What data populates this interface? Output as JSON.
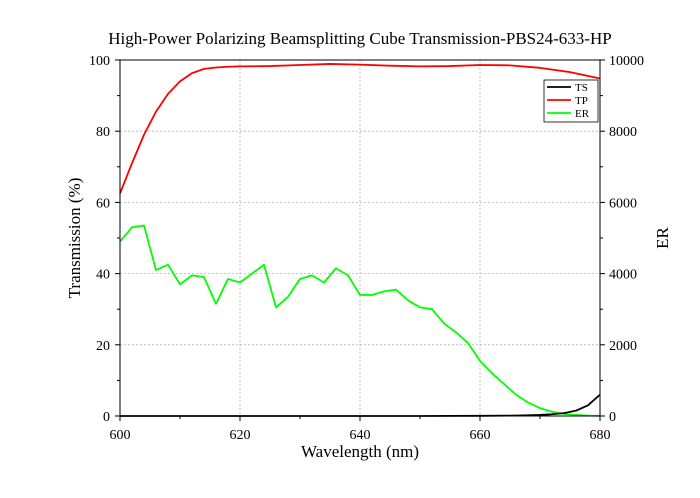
{
  "chart_data": {
    "type": "line",
    "title": "High-Power Polarizing Beamsplitting Cube Transmission-PBS24-633-HP",
    "xlabel": "Wavelength (nm)",
    "ylabel": "Transmission (%)",
    "y2label": "ER",
    "xlim": [
      600,
      680
    ],
    "ylim": [
      0,
      100
    ],
    "y2lim": [
      0,
      10000
    ],
    "xticks": [
      600,
      620,
      640,
      660,
      680
    ],
    "yticks": [
      0,
      20,
      40,
      60,
      80,
      100
    ],
    "y2ticks": [
      0,
      2000,
      4000,
      6000,
      8000,
      10000
    ],
    "grid": true,
    "legend_position": "top-right",
    "series": [
      {
        "name": "TS",
        "axis": "left",
        "color": "#000000",
        "x": [
          600,
          610,
          620,
          630,
          640,
          650,
          660,
          665,
          668,
          670,
          672,
          674,
          676,
          678,
          680
        ],
        "y": [
          0,
          0,
          0,
          0,
          0,
          0,
          0.05,
          0.1,
          0.2,
          0.3,
          0.5,
          0.8,
          1.5,
          3,
          6
        ]
      },
      {
        "name": "TP",
        "axis": "left",
        "color": "#ff0000",
        "x": [
          600,
          602,
          604,
          606,
          608,
          610,
          612,
          614,
          616,
          618,
          620,
          625,
          630,
          635,
          640,
          645,
          650,
          655,
          660,
          665,
          670,
          675,
          680
        ],
        "y": [
          62.5,
          71,
          79,
          85.5,
          90.5,
          94,
          96.3,
          97.5,
          97.9,
          98.1,
          98.2,
          98.3,
          98.6,
          98.9,
          98.7,
          98.4,
          98.2,
          98.3,
          98.6,
          98.5,
          97.8,
          96.6,
          94.8
        ]
      },
      {
        "name": "ER",
        "axis": "right",
        "color": "#00ff00",
        "x": [
          600,
          602,
          604,
          606,
          608,
          610,
          612,
          614,
          616,
          618,
          620,
          622,
          624,
          626,
          628,
          630,
          632,
          634,
          636,
          638,
          640,
          642,
          644,
          646,
          648,
          650,
          652,
          654,
          656,
          658,
          660,
          662,
          664,
          666,
          668,
          670,
          672,
          674,
          676,
          678,
          680
        ],
        "y": [
          4900,
          5300,
          5350,
          4100,
          4250,
          3700,
          3950,
          3900,
          3150,
          3850,
          3750,
          4000,
          4250,
          3050,
          3350,
          3850,
          3950,
          3750,
          4150,
          3950,
          3400,
          3400,
          3500,
          3550,
          3250,
          3050,
          3000,
          2600,
          2350,
          2050,
          1550,
          1200,
          900,
          600,
          380,
          220,
          120,
          60,
          30,
          10,
          5
        ]
      }
    ]
  }
}
